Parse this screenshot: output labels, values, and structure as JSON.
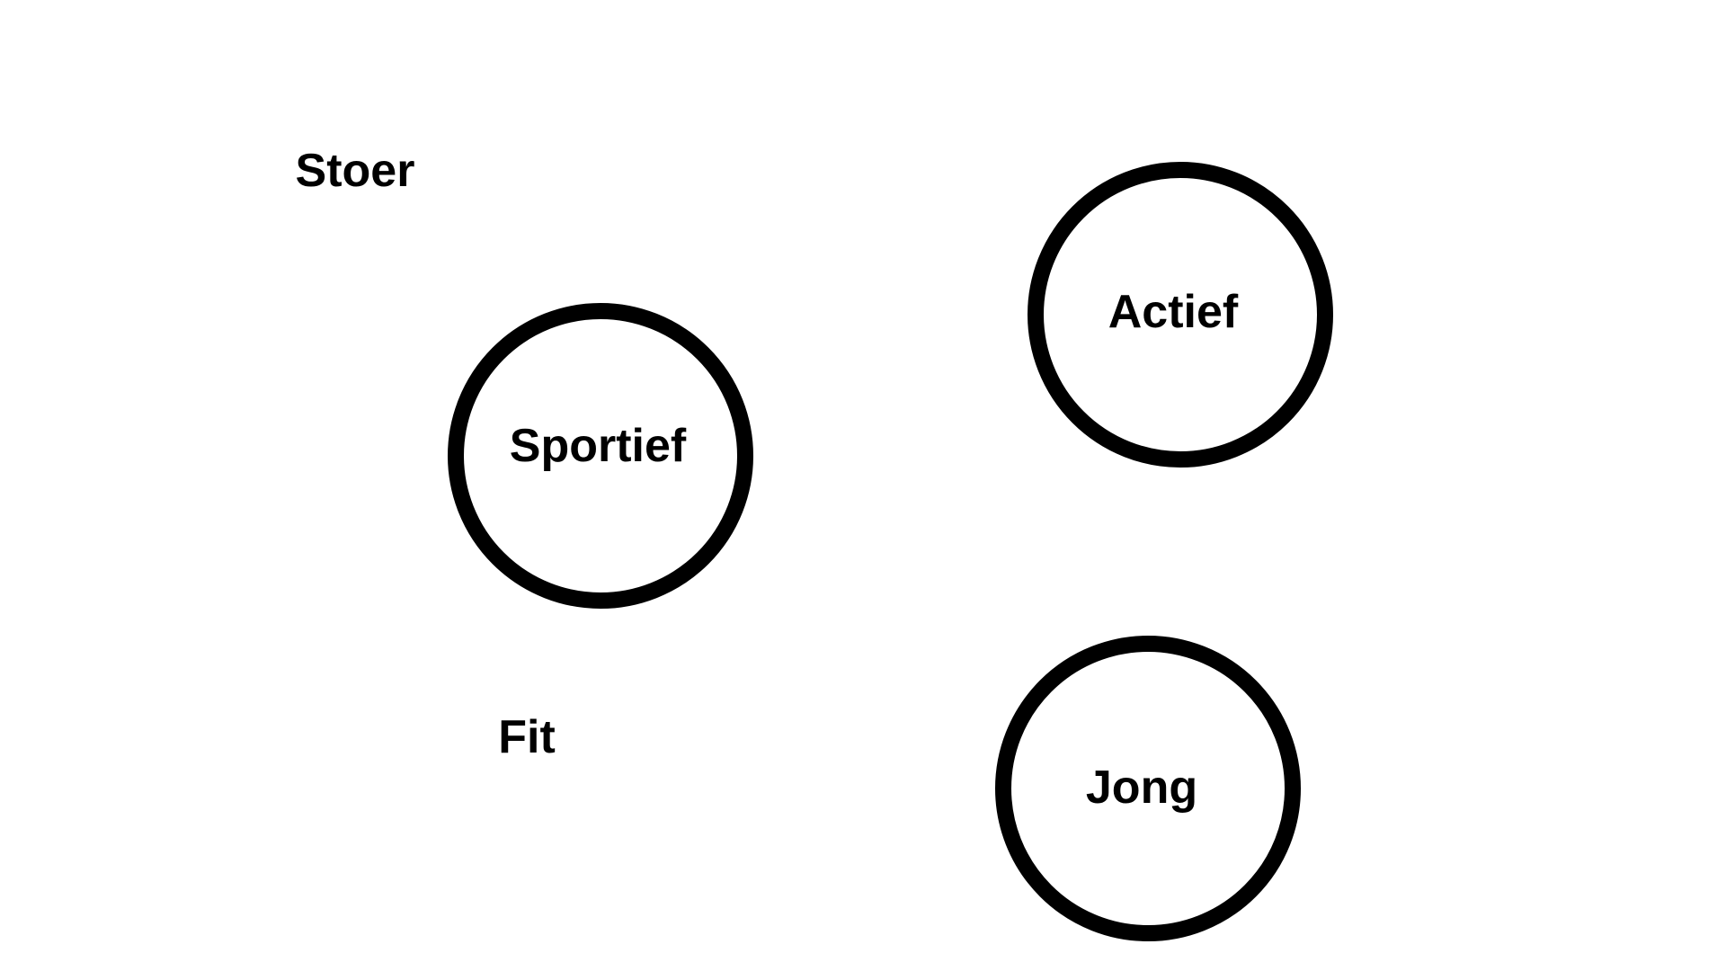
{
  "words": {
    "stoer": "Stoer",
    "fit": "Fit"
  },
  "circles": {
    "sportief": "Sportief",
    "actief": "Actief",
    "jong": "Jong"
  },
  "colors": {
    "stroke": "#000000",
    "text": "#000000",
    "background": "#ffffff"
  }
}
